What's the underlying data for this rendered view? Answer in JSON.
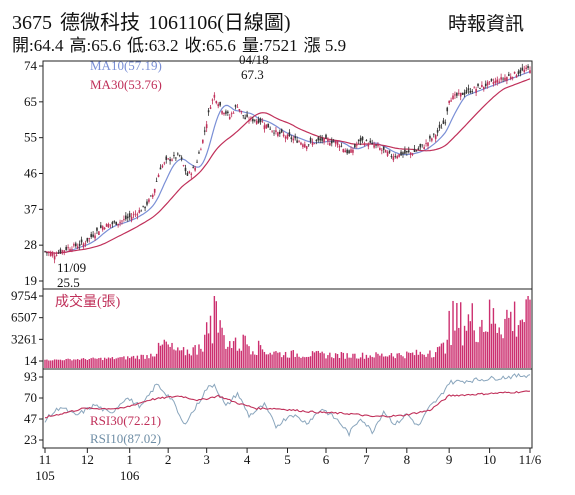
{
  "header": {
    "code": "3675",
    "name": "德微科技",
    "date": "1061106(日線圖)",
    "source": "時報資訊",
    "quote": {
      "open": "開:64.4",
      "high": "高:65.6",
      "low": "低:63.2",
      "close": "收:65.6",
      "volume": "量:7521",
      "change": "漲 5.9"
    }
  },
  "colors": {
    "ma10": "#7a8fd6",
    "ma30": "#c0305a",
    "candle_up": "#c0305a",
    "candle_down": "#333333",
    "volume": "#cc2f6f",
    "rsi30": "#c0305a",
    "rsi10": "#8aa6bd"
  },
  "chart_data": [
    {
      "type": "candlestick",
      "panel": "price",
      "ylim": [
        19,
        74
      ],
      "yticks": [
        "74",
        "65",
        "55",
        "46",
        "37",
        "28",
        "19"
      ],
      "legend": [
        {
          "id": "ma10",
          "label": "MA10(57.19)"
        },
        {
          "id": "ma30",
          "label": "MA30(53.76)"
        }
      ],
      "annotations": {
        "high": {
          "date": "04/18",
          "value": "67.3"
        },
        "low": {
          "date": "11/09",
          "value": "25.5"
        }
      },
      "keypoints": [
        {
          "i": 0,
          "p": 26.5
        },
        {
          "i": 5,
          "p": 25.8
        },
        {
          "i": 12,
          "p": 27.5
        },
        {
          "i": 20,
          "p": 28.5
        },
        {
          "i": 30,
          "p": 33.0
        },
        {
          "i": 38,
          "p": 34.0
        },
        {
          "i": 45,
          "p": 35.5
        },
        {
          "i": 52,
          "p": 38.0
        },
        {
          "i": 56,
          "p": 41.0
        },
        {
          "i": 60,
          "p": 48.0
        },
        {
          "i": 64,
          "p": 50.0
        },
        {
          "i": 70,
          "p": 51.0
        },
        {
          "i": 74,
          "p": 46.0
        },
        {
          "i": 78,
          "p": 48.0
        },
        {
          "i": 82,
          "p": 55.0
        },
        {
          "i": 86,
          "p": 64.0
        },
        {
          "i": 88,
          "p": 66.5
        },
        {
          "i": 92,
          "p": 63.0
        },
        {
          "i": 96,
          "p": 61.0
        },
        {
          "i": 100,
          "p": 64.0
        },
        {
          "i": 104,
          "p": 60.5
        },
        {
          "i": 112,
          "p": 60.0
        },
        {
          "i": 120,
          "p": 57.0
        },
        {
          "i": 128,
          "p": 55.5
        },
        {
          "i": 136,
          "p": 54.0
        },
        {
          "i": 144,
          "p": 55.0
        },
        {
          "i": 152,
          "p": 54.5
        },
        {
          "i": 158,
          "p": 51.5
        },
        {
          "i": 164,
          "p": 55.0
        },
        {
          "i": 172,
          "p": 53.5
        },
        {
          "i": 180,
          "p": 51.0
        },
        {
          "i": 186,
          "p": 51.5
        },
        {
          "i": 192,
          "p": 52.0
        },
        {
          "i": 198,
          "p": 54.0
        },
        {
          "i": 204,
          "p": 57.0
        },
        {
          "i": 208,
          "p": 60.0
        },
        {
          "i": 210,
          "p": 65.6
        }
      ]
    },
    {
      "type": "bar",
      "panel": "volume",
      "title": "成交量(張)",
      "ylim": [
        14,
        9754
      ],
      "yticks": [
        "9754",
        "6507",
        "3261",
        "14"
      ],
      "keypoints": [
        {
          "i": 0,
          "v": 200
        },
        {
          "i": 40,
          "v": 600
        },
        {
          "i": 55,
          "v": 1100
        },
        {
          "i": 62,
          "v": 3200
        },
        {
          "i": 70,
          "v": 1600
        },
        {
          "i": 80,
          "v": 2500
        },
        {
          "i": 86,
          "v": 6800
        },
        {
          "i": 88,
          "v": 9754
        },
        {
          "i": 92,
          "v": 5000
        },
        {
          "i": 98,
          "v": 3000
        },
        {
          "i": 104,
          "v": 3800
        },
        {
          "i": 112,
          "v": 2400
        },
        {
          "i": 120,
          "v": 1500
        },
        {
          "i": 140,
          "v": 1300
        },
        {
          "i": 160,
          "v": 1100
        },
        {
          "i": 180,
          "v": 1200
        },
        {
          "i": 200,
          "v": 1600
        },
        {
          "i": 205,
          "v": 2200
        },
        {
          "i": 209,
          "v": 3200
        },
        {
          "i": 210,
          "v": 7521
        }
      ]
    },
    {
      "type": "line",
      "panel": "rsi",
      "ylim": [
        23,
        93
      ],
      "yticks": [
        "93",
        "70",
        "47",
        "23"
      ],
      "series": [
        {
          "id": "rsi30",
          "name": "RSI30(72.21)",
          "keypoints": [
            {
              "i": 0,
              "r": 48
            },
            {
              "i": 20,
              "r": 58
            },
            {
              "i": 40,
              "r": 58
            },
            {
              "i": 55,
              "r": 68
            },
            {
              "i": 70,
              "r": 72
            },
            {
              "i": 80,
              "r": 67
            },
            {
              "i": 90,
              "r": 72
            },
            {
              "i": 100,
              "r": 64
            },
            {
              "i": 110,
              "r": 58
            },
            {
              "i": 120,
              "r": 58
            },
            {
              "i": 140,
              "r": 54
            },
            {
              "i": 160,
              "r": 52
            },
            {
              "i": 170,
              "r": 49
            },
            {
              "i": 185,
              "r": 50
            },
            {
              "i": 200,
              "r": 56
            },
            {
              "i": 210,
              "r": 72.21
            }
          ]
        },
        {
          "id": "rsi10",
          "name": "RSI10(87.02)",
          "keypoints": [
            {
              "i": 0,
              "r": 45
            },
            {
              "i": 8,
              "r": 60
            },
            {
              "i": 16,
              "r": 50
            },
            {
              "i": 26,
              "r": 62
            },
            {
              "i": 34,
              "r": 52
            },
            {
              "i": 42,
              "r": 70
            },
            {
              "i": 50,
              "r": 60
            },
            {
              "i": 58,
              "r": 85
            },
            {
              "i": 66,
              "r": 68
            },
            {
              "i": 72,
              "r": 40
            },
            {
              "i": 78,
              "r": 58
            },
            {
              "i": 84,
              "r": 80
            },
            {
              "i": 88,
              "r": 85
            },
            {
              "i": 94,
              "r": 60
            },
            {
              "i": 100,
              "r": 75
            },
            {
              "i": 106,
              "r": 50
            },
            {
              "i": 114,
              "r": 62
            },
            {
              "i": 120,
              "r": 38
            },
            {
              "i": 128,
              "r": 52
            },
            {
              "i": 136,
              "r": 42
            },
            {
              "i": 144,
              "r": 58
            },
            {
              "i": 152,
              "r": 45
            },
            {
              "i": 158,
              "r": 30
            },
            {
              "i": 164,
              "r": 48
            },
            {
              "i": 170,
              "r": 32
            },
            {
              "i": 176,
              "r": 55
            },
            {
              "i": 182,
              "r": 40
            },
            {
              "i": 188,
              "r": 52
            },
            {
              "i": 194,
              "r": 38
            },
            {
              "i": 200,
              "r": 60
            },
            {
              "i": 205,
              "r": 70
            },
            {
              "i": 210,
              "r": 87.02
            }
          ]
        }
      ]
    }
  ],
  "xaxis": {
    "ticks": [
      {
        "i": 0,
        "month": "11",
        "year": "105"
      },
      {
        "i": 22,
        "month": "12",
        "year": ""
      },
      {
        "i": 44,
        "month": "1",
        "year": "106"
      },
      {
        "i": 64,
        "month": "2",
        "year": ""
      },
      {
        "i": 84,
        "month": "3",
        "year": ""
      },
      {
        "i": 105,
        "month": "4",
        "year": ""
      },
      {
        "i": 126,
        "month": "5",
        "year": ""
      },
      {
        "i": 146,
        "month": "6",
        "year": ""
      },
      {
        "i": 167,
        "month": "7",
        "year": ""
      },
      {
        "i": 188,
        "month": "8",
        "year": ""
      },
      {
        "i": 210,
        "month": "9",
        "year": ""
      },
      {
        "i": 231,
        "month": "10",
        "year": ""
      },
      {
        "i": 252,
        "month": "11/6",
        "year": ""
      }
    ]
  }
}
